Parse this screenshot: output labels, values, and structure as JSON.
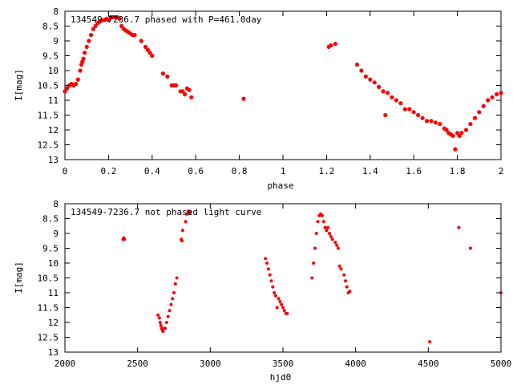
{
  "chart_data": [
    {
      "type": "scatter",
      "title": "134549-7236.7 phased with P=461.0day",
      "xlabel": "phase",
      "ylabel": "I[mag]",
      "xlim": [
        0,
        2
      ],
      "ylim": [
        13,
        8
      ],
      "y_inverted": true,
      "grid": false,
      "marker_color": "#ff0000",
      "x_ticks": [
        "0",
        "0.2",
        "0.4",
        "0.6",
        "0.8",
        "1",
        "1.2",
        "1.4",
        "1.6",
        "1.8",
        "2"
      ],
      "y_ticks": [
        "8",
        "8.5",
        "9",
        "9.5",
        "10",
        "10.5",
        "11",
        "11.5",
        "12",
        "12.5",
        "13"
      ],
      "series": [
        {
          "x": [
            0.0,
            0.01,
            0.02,
            0.03,
            0.04,
            0.05,
            0.06,
            0.07,
            0.075,
            0.08,
            0.085,
            0.09,
            0.1,
            0.11,
            0.12,
            0.13,
            0.14,
            0.15,
            0.16,
            0.17,
            0.18,
            0.19,
            0.2,
            0.21,
            0.22,
            0.23,
            0.24,
            0.25,
            0.26,
            0.27,
            0.28,
            0.29,
            0.3,
            0.31,
            0.32,
            0.35,
            0.37,
            0.38,
            0.39,
            0.4,
            0.45,
            0.47,
            0.49,
            0.5,
            0.51,
            0.53,
            0.54,
            0.55,
            0.56,
            0.57,
            0.58,
            0.82,
            1.21,
            1.22,
            1.24,
            1.34,
            1.36,
            1.38,
            1.4,
            1.42,
            1.44,
            1.46,
            1.47,
            1.48,
            1.5,
            1.52,
            1.54,
            1.56,
            1.58,
            1.6,
            1.62,
            1.64,
            1.66,
            1.68,
            1.7,
            1.72,
            1.74,
            1.75,
            1.76,
            1.77,
            1.78,
            1.79,
            1.8,
            1.81,
            1.82,
            1.84,
            1.86,
            1.88,
            1.9,
            1.92,
            1.94,
            1.96,
            1.98,
            2.0
          ],
          "y": [
            10.7,
            10.6,
            10.5,
            10.45,
            10.5,
            10.45,
            10.3,
            10.0,
            9.8,
            9.7,
            9.6,
            9.4,
            9.2,
            9.0,
            8.8,
            8.6,
            8.5,
            8.4,
            8.35,
            8.3,
            8.3,
            8.25,
            8.3,
            8.2,
            8.2,
            8.2,
            8.2,
            8.25,
            8.5,
            8.6,
            8.65,
            8.7,
            8.75,
            8.8,
            8.8,
            9.0,
            9.2,
            9.3,
            9.4,
            9.5,
            10.1,
            10.2,
            10.5,
            10.5,
            10.5,
            10.7,
            10.7,
            10.8,
            10.6,
            10.65,
            10.9,
            10.95,
            9.2,
            9.15,
            9.1,
            9.8,
            10.0,
            10.2,
            10.3,
            10.4,
            10.55,
            10.7,
            11.5,
            10.75,
            10.9,
            11.0,
            11.1,
            11.3,
            11.3,
            11.4,
            11.5,
            11.6,
            11.7,
            11.7,
            11.75,
            11.8,
            11.95,
            12.0,
            12.1,
            12.15,
            12.2,
            12.65,
            12.1,
            12.2,
            12.1,
            12.0,
            11.8,
            11.6,
            11.4,
            11.2,
            11.0,
            10.9,
            10.8,
            10.75
          ]
        }
      ]
    },
    {
      "type": "scatter",
      "title": "134549-7236.7 not phased light curve",
      "xlabel": "hjd0",
      "ylabel": "I[mag]",
      "xlim": [
        2000,
        5000
      ],
      "ylim": [
        13,
        8
      ],
      "y_inverted": true,
      "grid": false,
      "marker_color": "#ff0000",
      "x_ticks": [
        "2000",
        "2500",
        "3000",
        "3500",
        "4000",
        "4500",
        "5000"
      ],
      "y_ticks": [
        "8",
        "8.5",
        "9",
        "9.5",
        "10",
        "10.5",
        "11",
        "11.5",
        "12",
        "12.5",
        "13"
      ],
      "series": [
        {
          "x": [
            2400,
            2405,
            2410,
            2640,
            2650,
            2655,
            2660,
            2665,
            2670,
            2675,
            2680,
            2690,
            2700,
            2710,
            2720,
            2730,
            2740,
            2750,
            2760,
            2770,
            2800,
            2805,
            2810,
            2830,
            2840,
            2850,
            2860,
            3380,
            3390,
            3400,
            3410,
            3420,
            3430,
            3440,
            3450,
            3460,
            3470,
            3480,
            3490,
            3500,
            3510,
            3520,
            3530,
            3700,
            3710,
            3720,
            3730,
            3740,
            3750,
            3760,
            3770,
            3780,
            3790,
            3800,
            3810,
            3820,
            3830,
            3840,
            3860,
            3870,
            3880,
            3890,
            3900,
            3920,
            3930,
            3940,
            3950,
            3960,
            4510,
            4710,
            4790,
            5000
          ],
          "y": [
            9.2,
            9.15,
            9.2,
            11.75,
            11.85,
            12.0,
            12.1,
            12.2,
            12.25,
            12.3,
            12.2,
            12.2,
            12.0,
            11.8,
            11.6,
            11.4,
            11.2,
            11.0,
            10.7,
            10.5,
            9.2,
            9.25,
            8.9,
            8.6,
            8.35,
            8.25,
            8.3,
            9.85,
            10.0,
            10.2,
            10.4,
            10.6,
            10.8,
            11.0,
            11.1,
            11.5,
            11.2,
            11.3,
            11.4,
            11.5,
            11.6,
            11.7,
            11.7,
            10.5,
            10.0,
            9.5,
            9.0,
            8.6,
            8.4,
            8.35,
            8.4,
            8.6,
            8.8,
            8.9,
            8.8,
            9.0,
            9.1,
            9.2,
            9.3,
            9.4,
            9.5,
            10.1,
            10.2,
            10.4,
            10.6,
            10.8,
            11.0,
            10.95,
            12.65,
            8.8,
            9.5,
            11.0
          ]
        }
      ]
    }
  ]
}
